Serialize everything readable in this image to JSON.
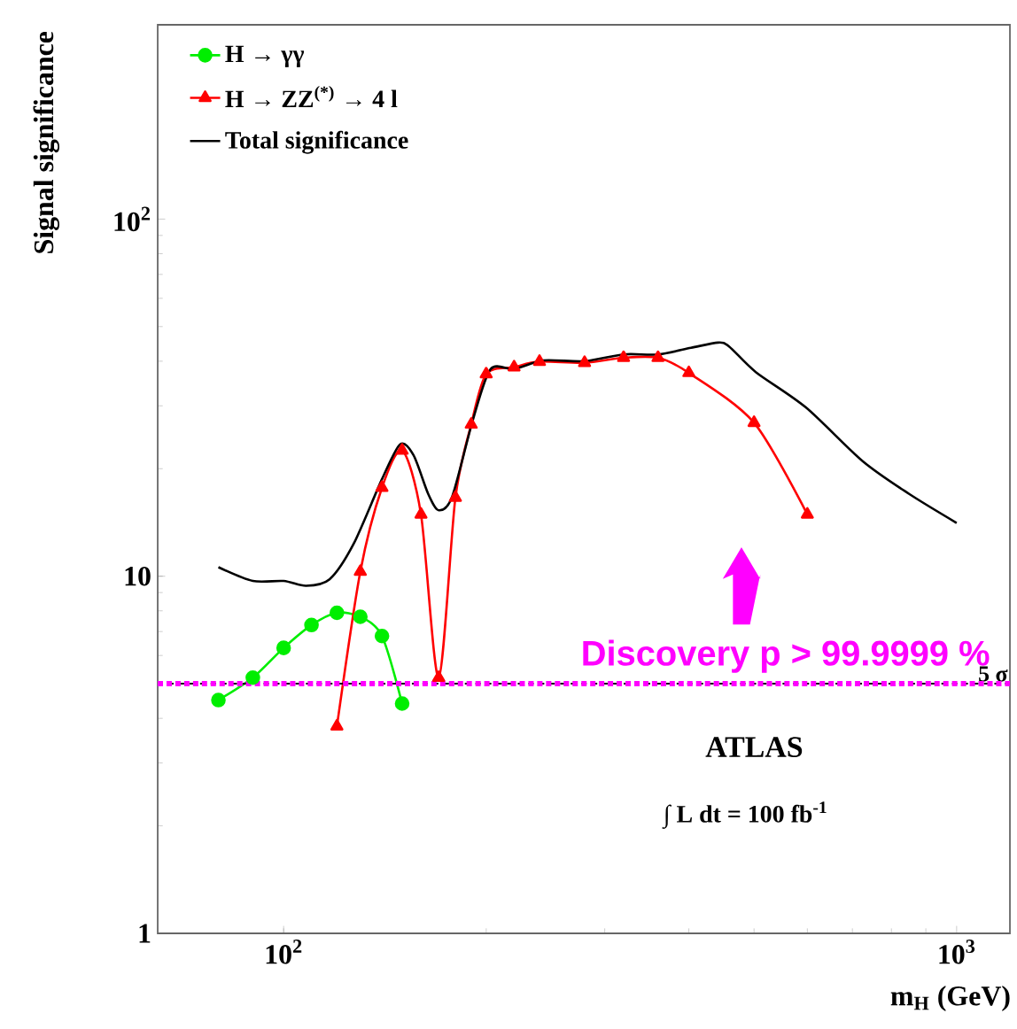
{
  "chart_data": {
    "type": "line",
    "xlabel": "m$_{H}$ (GeV)",
    "ylabel": "Signal significance",
    "xlim": [
      65,
      1200
    ],
    "ylim": [
      1,
      350
    ],
    "log": "xy",
    "legend": "top left",
    "xticks": [
      {
        "value": 100,
        "label": "10$^{2}$"
      },
      {
        "value": 1000,
        "label": "10$^{3}$"
      }
    ],
    "yticks": [
      1,
      10,
      {
        "value": 100,
        "label": "10$^{2}$"
      }
    ],
    "series": [
      {
        "name": "H → γγ",
        "color": "#00ee00",
        "marker": "circle",
        "x": [
          80,
          90,
          100,
          110,
          120,
          130,
          140,
          150
        ],
        "values": [
          4.5,
          5.2,
          6.3,
          7.3,
          7.9,
          7.7,
          6.8,
          4.4
        ]
      },
      {
        "name": "H → ZZ$^{(*)}$ → 4 l",
        "color": "#ff0000",
        "marker": "triangle",
        "x": [
          120,
          130,
          140,
          150,
          160,
          170,
          180,
          190,
          200,
          220,
          240,
          280,
          320,
          360,
          400,
          500,
          600
        ],
        "values": [
          3.8,
          10.3,
          17.7,
          22.5,
          14.9,
          5.2,
          16.6,
          26.6,
          36.8,
          38.5,
          39.9,
          39.6,
          40.9,
          40.9,
          37.1,
          26.9,
          14.9
        ]
      },
      {
        "name": "Total significance",
        "color": "#000000",
        "marker": "none",
        "x": [
          80,
          90,
          100,
          108,
          117,
          127,
          140,
          149,
          156,
          164,
          170,
          178,
          191,
          203,
          220,
          243,
          280,
          320,
          360,
          403,
          442,
          459,
          503,
          597,
          725,
          850,
          1000
        ],
        "values": [
          10.6,
          9.7,
          9.7,
          9.4,
          9.8,
          12.3,
          18.7,
          23.4,
          21.8,
          17.0,
          15.3,
          16.7,
          27.3,
          38.0,
          38.0,
          40.2,
          40.0,
          41.8,
          41.8,
          43.6,
          45.1,
          44.0,
          37.3,
          29.7,
          21.0,
          17.0,
          14.1
        ]
      }
    ],
    "ref_lines": [
      {
        "axis": "y",
        "value": 5,
        "label": "5 σ",
        "color": "#000000",
        "line_style": "dashed"
      },
      {
        "axis": "y",
        "value": 5,
        "label": "Discovery   p > 99.9999 %",
        "color": "#ff00ff",
        "line_style": "dotted"
      }
    ],
    "annotations": [
      "ATLAS",
      "∫ L dt = 100 fb$^{-1}$"
    ]
  }
}
